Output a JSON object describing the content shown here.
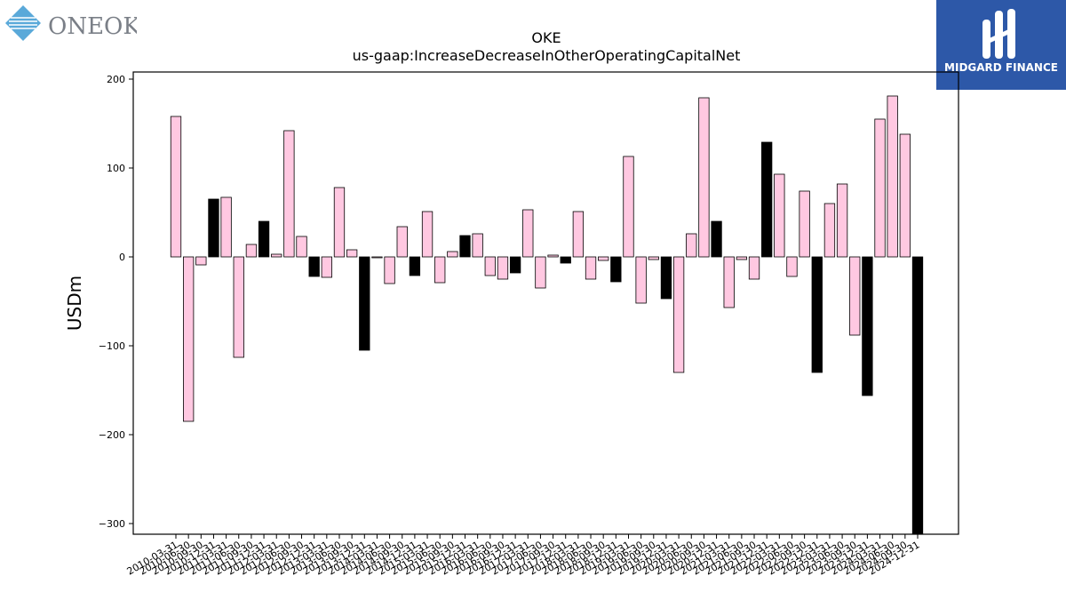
{
  "header": {
    "left_logo_text": "ONEOK",
    "right_logo_text": "MIDGARD FINANCE"
  },
  "chart_data": {
    "type": "bar",
    "title": "OKE",
    "subtitle": "us-gaap:IncreaseDecreaseInOtherOperatingCapitalNet",
    "ylabel": "USDm",
    "xlabel": "",
    "ylim": [
      -312,
      208
    ],
    "yticks": [
      200,
      100,
      0,
      -100,
      -200,
      -300
    ],
    "colors": {
      "positive_quarter": "#ffc8e1",
      "annual": "#000000",
      "edge": "#000000"
    },
    "categories": [
      "2010-03-31",
      "2010-06-30",
      "2010-09-30",
      "2010-12-31",
      "2011-03-31",
      "2011-06-30",
      "2011-09-30",
      "2011-12-31",
      "2012-03-31",
      "2012-06-30",
      "2012-09-30",
      "2012-12-31",
      "2013-03-31",
      "2013-06-30",
      "2013-09-30",
      "2013-12-31",
      "2014-03-31",
      "2014-06-30",
      "2014-09-30",
      "2014-12-31",
      "2015-03-31",
      "2015-06-30",
      "2015-09-30",
      "2015-12-31",
      "2016-03-31",
      "2016-06-30",
      "2016-09-30",
      "2016-12-31",
      "2017-03-31",
      "2017-06-30",
      "2017-09-30",
      "2017-12-31",
      "2018-03-31",
      "2018-06-30",
      "2018-09-30",
      "2018-12-31",
      "2019-03-31",
      "2019-06-30",
      "2019-09-30",
      "2019-12-31",
      "2020-03-31",
      "2020-06-30",
      "2020-09-30",
      "2020-12-31",
      "2021-03-31",
      "2021-06-30",
      "2021-09-30",
      "2021-12-31",
      "2022-03-31",
      "2022-06-30",
      "2022-09-30",
      "2022-12-31",
      "2023-03-31",
      "2023-06-30",
      "2023-09-30",
      "2023-12-31",
      "2024-03-31",
      "2024-06-30",
      "2024-09-30",
      "2024-12-31"
    ],
    "values": [
      158,
      -185,
      -9,
      65,
      67,
      -113,
      14,
      40,
      3,
      142,
      23,
      -22,
      -23,
      78,
      8,
      -105,
      -1,
      -30,
      34,
      -21,
      51,
      -29,
      6,
      24,
      26,
      -21,
      -25,
      -18,
      53,
      -35,
      2,
      -7,
      51,
      -25,
      -4,
      -28,
      113,
      -52,
      -3,
      -47,
      -130,
      26,
      179,
      40,
      -57,
      -3,
      -25,
      129,
      93,
      -22,
      74,
      -130,
      60,
      82,
      -88,
      -156,
      155,
      181,
      138,
      -312
    ],
    "annual_flags": [
      false,
      false,
      false,
      true,
      false,
      false,
      false,
      true,
      false,
      false,
      false,
      true,
      false,
      false,
      false,
      true,
      false,
      false,
      false,
      true,
      false,
      false,
      false,
      true,
      false,
      false,
      false,
      true,
      false,
      false,
      false,
      true,
      false,
      false,
      false,
      true,
      false,
      false,
      false,
      true,
      false,
      false,
      false,
      true,
      false,
      false,
      false,
      true,
      false,
      false,
      false,
      true,
      false,
      false,
      false,
      true,
      false,
      false,
      false,
      true
    ]
  }
}
